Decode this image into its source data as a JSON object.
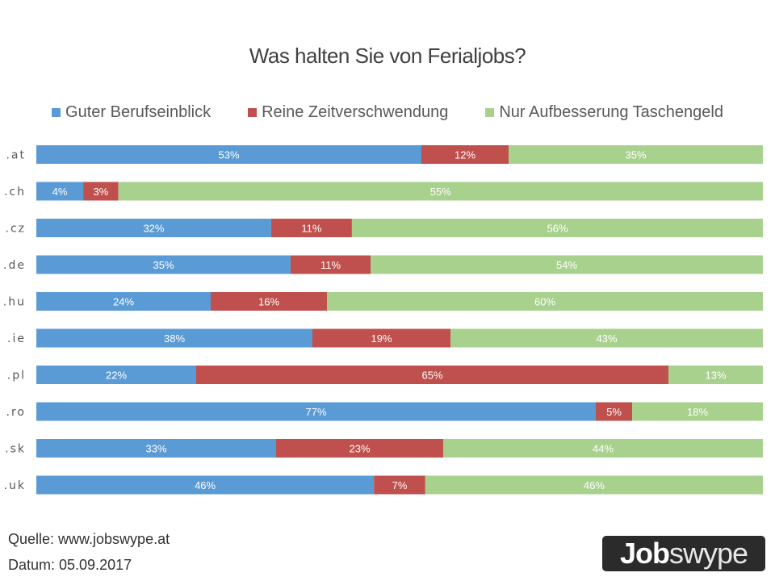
{
  "chart_data": {
    "type": "bar",
    "orientation": "horizontal",
    "stacked": "percent",
    "title": "Was halten Sie von Ferialjobs?",
    "xlabel": "",
    "ylabel": "",
    "grid": false,
    "legend_position": "top",
    "categories": [
      ".at",
      ".ch",
      ".cz",
      ".de",
      ".hu",
      ".ie",
      ".pl",
      ".ro",
      ".sk",
      ".uk"
    ],
    "series": [
      {
        "name": "Guter Berufseinblick",
        "color": "#5b9bd5",
        "values": [
          53,
          4,
          32,
          35,
          24,
          38,
          22,
          77,
          33,
          46
        ]
      },
      {
        "name": "Reine Zeitverschwendung",
        "color": "#c0504d",
        "values": [
          12,
          3,
          11,
          11,
          16,
          19,
          65,
          5,
          23,
          7
        ]
      },
      {
        "name": "Nur Aufbesserung Taschengeld",
        "color": "#a9d18e",
        "values": [
          35,
          55,
          56,
          54,
          60,
          43,
          13,
          18,
          44,
          46
        ]
      }
    ],
    "value_suffix": "%"
  },
  "footer": {
    "source": "Quelle: www.jobswype.at",
    "date": "Datum: 05.09.2017"
  },
  "logo": {
    "bold_part": "Job",
    "light_part": "swype"
  }
}
